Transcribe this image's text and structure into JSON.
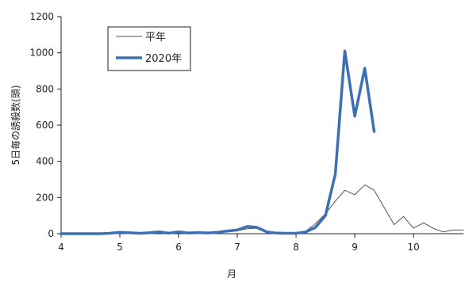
{
  "chart_data": {
    "type": "line",
    "title": "",
    "xlabel": "月",
    "ylabel": "5日毎の誘殺数(頭)",
    "xlim": [
      4,
      10.85
    ],
    "ylim": [
      0,
      1200
    ],
    "x_ticks": [
      4,
      5,
      6,
      7,
      8,
      9,
      10
    ],
    "y_ticks": [
      0,
      200,
      400,
      600,
      800,
      1000,
      1200
    ],
    "x_tick_labels": [
      "4",
      "5",
      "6",
      "7",
      "8",
      "9",
      "10"
    ],
    "y_tick_labels": [
      "0",
      "200",
      "400",
      "600",
      "800",
      "1000",
      "1200"
    ],
    "legend_placement": "top-left",
    "grid": false,
    "series": [
      {
        "name": "平年",
        "color": "#555555",
        "x": [
          4.0,
          4.17,
          4.33,
          4.5,
          4.67,
          4.83,
          5.0,
          5.17,
          5.33,
          5.5,
          5.67,
          5.83,
          6.0,
          6.17,
          6.33,
          6.5,
          6.67,
          6.83,
          7.0,
          7.17,
          7.33,
          7.5,
          7.67,
          7.83,
          8.0,
          8.17,
          8.33,
          8.5,
          8.67,
          8.83,
          9.0,
          9.17,
          9.33,
          9.5,
          9.67,
          9.83,
          10.0,
          10.17,
          10.33,
          10.5,
          10.67,
          10.85
        ],
        "values": [
          0,
          0,
          0,
          0,
          1,
          2,
          4,
          5,
          3,
          4,
          6,
          5,
          4,
          6,
          5,
          5,
          7,
          10,
          16,
          27,
          30,
          12,
          4,
          2,
          4,
          15,
          55,
          110,
          180,
          240,
          215,
          270,
          240,
          145,
          50,
          95,
          30,
          60,
          30,
          10,
          20,
          20
        ]
      },
      {
        "name": "2020年",
        "color": "#3b70b4",
        "x": [
          4.0,
          4.17,
          4.33,
          4.5,
          4.67,
          4.83,
          5.0,
          5.17,
          5.33,
          5.5,
          5.67,
          5.83,
          6.0,
          6.17,
          6.33,
          6.5,
          6.67,
          6.83,
          7.0,
          7.17,
          7.33,
          7.5,
          7.67,
          7.83,
          8.0,
          8.17,
          8.33,
          8.5,
          8.67,
          8.83,
          9.0,
          9.17,
          9.33
        ],
        "values": [
          0,
          0,
          0,
          0,
          0,
          2,
          8,
          5,
          2,
          5,
          10,
          3,
          10,
          4,
          6,
          4,
          8,
          15,
          20,
          40,
          35,
          10,
          3,
          2,
          2,
          10,
          35,
          100,
          330,
          1010,
          650,
          915,
          565
        ]
      }
    ]
  }
}
